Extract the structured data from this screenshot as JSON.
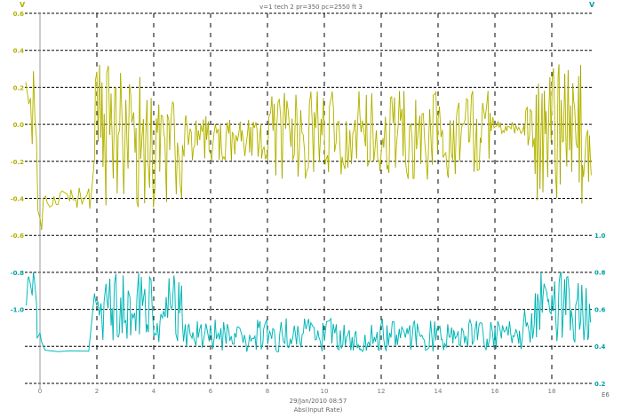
{
  "chart_data": {
    "type": "line",
    "title": "v=1 tech 2 pr=350 pc=2550 ft 3",
    "left_axis_marker": "V",
    "right_axis_marker": "V",
    "x_unit": "E6",
    "footer_line1": "29/Jan/2010 08:57",
    "footer_line2": "Abs(Input Rate)",
    "xlim": [
      -0.5,
      19.5
    ],
    "x_ticks": [
      "0",
      "2",
      "4",
      "6",
      "8",
      "10",
      "12",
      "14",
      "16",
      "18"
    ],
    "x_tick_values": [
      0,
      2,
      4,
      6,
      8,
      10,
      12,
      14,
      16,
      18
    ],
    "left_ylim": [
      -1.4,
      0.6
    ],
    "left_ticks": [
      "0.6",
      "0.4",
      "0.2",
      "0.0",
      "-0.2",
      "-0.4",
      "-0.6",
      "-0.8",
      "-1.0"
    ],
    "left_tick_values": [
      0.6,
      0.4,
      0.2,
      0.0,
      -0.2,
      -0.4,
      -0.6,
      -0.8,
      -1.0
    ],
    "right_ylim": [
      0.2,
      1.0
    ],
    "right_ticks": [
      "1.0",
      "0.8",
      "0.6",
      "0.4",
      "0.2"
    ],
    "right_tick_values": [
      1.0,
      0.8,
      0.6,
      0.4,
      0.2
    ],
    "grid": true,
    "colors": {
      "series1": "#d8d800",
      "series2": "#00d8d8",
      "label_left": "#b0b000",
      "label_right": "#00a0a0",
      "grid": "#000000"
    },
    "series": [
      {
        "name": "yellow",
        "axis": "left",
        "segments": [
          {
            "x": [
              -0.5,
              -0.1
            ],
            "range": [
              -0.2,
              0.3
            ],
            "n": 8
          },
          {
            "x": [
              -0.1,
              0.1
            ],
            "range": [
              -0.6,
              -0.4
            ],
            "n": 4
          },
          {
            "x": [
              0.1,
              1.9
            ],
            "range": [
              -0.46,
              -0.33
            ],
            "n": 24
          },
          {
            "x": [
              1.9,
              5.0
            ],
            "range": [
              -0.45,
              0.33
            ],
            "n": 70
          },
          {
            "x": [
              5.0,
              8.0
            ],
            "range": [
              -0.2,
              0.05
            ],
            "n": 70
          },
          {
            "x": [
              8.0,
              16.0
            ],
            "range": [
              -0.3,
              0.18
            ],
            "n": 180
          },
          {
            "x": [
              16.0,
              17.0
            ],
            "range": [
              -0.05,
              0.02
            ],
            "n": 22
          },
          {
            "x": [
              17.0,
              17.4
            ],
            "range": [
              -0.2,
              0.15
            ],
            "n": 10
          },
          {
            "x": [
              17.4,
              19.4
            ],
            "range": [
              -0.45,
              0.33
            ],
            "n": 50
          }
        ]
      },
      {
        "name": "cyan",
        "axis": "right",
        "segments": [
          {
            "x": [
              -0.5,
              -0.1
            ],
            "range": [
              0.6,
              0.8
            ],
            "n": 8
          },
          {
            "x": [
              -0.1,
              0.1
            ],
            "range": [
              0.37,
              0.6
            ],
            "n": 3
          },
          {
            "x": [
              0.1,
              1.9
            ],
            "range": [
              0.37,
              0.38
            ],
            "n": 4
          },
          {
            "x": [
              1.9,
              5.0
            ],
            "range": [
              0.42,
              0.8
            ],
            "n": 70
          },
          {
            "x": [
              5.0,
              17.0
            ],
            "range": [
              0.37,
              0.55
            ],
            "n": 260
          },
          {
            "x": [
              17.0,
              17.4
            ],
            "range": [
              0.4,
              0.6
            ],
            "n": 10
          },
          {
            "x": [
              17.4,
              19.4
            ],
            "range": [
              0.42,
              0.8
            ],
            "n": 50
          }
        ]
      }
    ]
  }
}
